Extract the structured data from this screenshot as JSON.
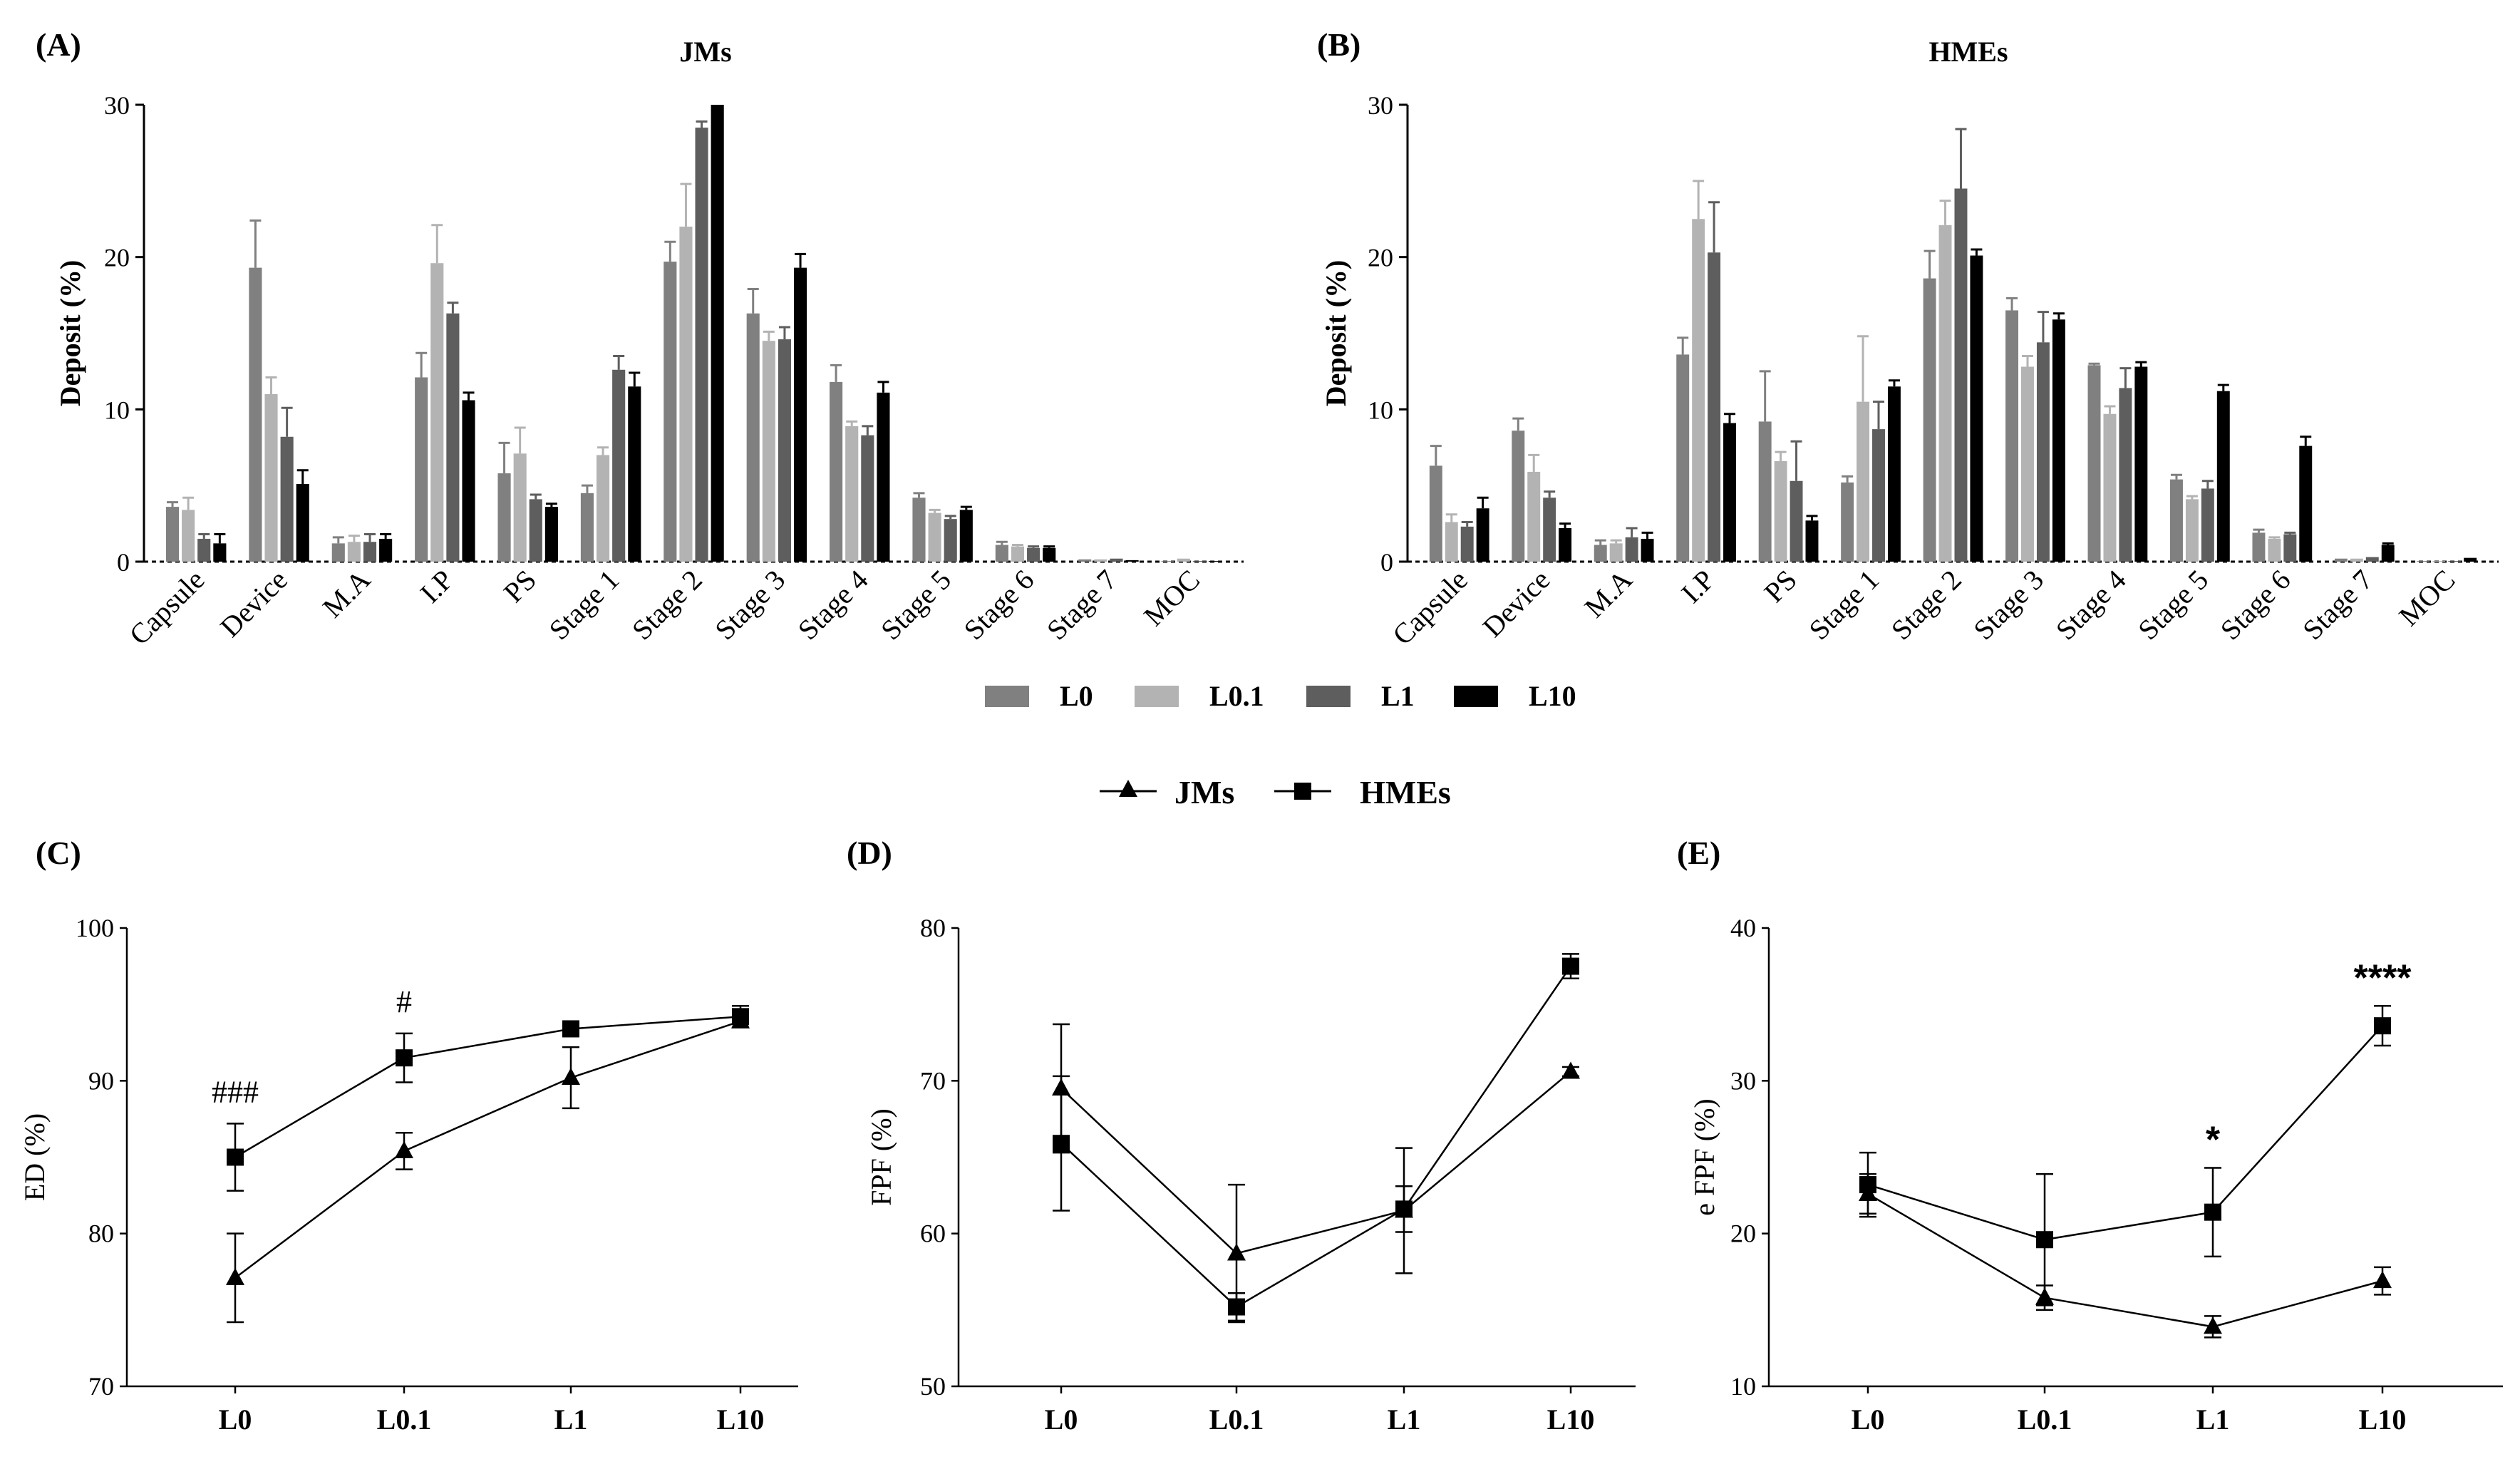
{
  "chart_data": [
    {
      "panel": "(A)",
      "type": "bar",
      "title": "JMs",
      "ylabel": "Deposit (%)",
      "ylim": [
        0,
        30
      ],
      "yticks": [
        "0",
        "10",
        "20",
        "30"
      ],
      "categories": [
        "Capsule",
        "Device",
        "M.A",
        "I.P",
        "PS",
        "Stage 1",
        "Stage 2",
        "Stage 3",
        "Stage 4",
        "Stage 5",
        "Stage 6",
        "Stage 7",
        "MOC"
      ],
      "series": [
        {
          "name": "L0",
          "color": "#808080",
          "values": [
            3.6,
            19.3,
            1.2,
            12.1,
            5.8,
            4.5,
            19.7,
            16.3,
            11.8,
            4.2,
            1.1,
            0.15,
            0.05
          ],
          "errors": [
            0.3,
            3.1,
            0.4,
            1.6,
            2.0,
            0.5,
            1.3,
            1.6,
            1.1,
            0.3,
            0.2,
            0.05,
            0.03
          ]
        },
        {
          "name": "L0.1",
          "color": "#b3b3b3",
          "values": [
            3.4,
            11.0,
            1.3,
            19.6,
            7.1,
            7.0,
            22.0,
            14.5,
            8.9,
            3.2,
            1.0,
            0.15,
            0.2
          ],
          "errors": [
            0.8,
            1.1,
            0.4,
            2.5,
            1.7,
            0.5,
            2.8,
            0.6,
            0.3,
            0.2,
            0.1,
            0.05,
            0.05
          ]
        },
        {
          "name": "L1",
          "color": "#5e5e5e",
          "values": [
            1.5,
            8.2,
            1.3,
            16.3,
            4.1,
            12.6,
            28.5,
            14.6,
            8.3,
            2.8,
            0.9,
            0.2,
            0.05
          ],
          "errors": [
            0.3,
            1.9,
            0.5,
            0.7,
            0.3,
            0.9,
            0.4,
            0.8,
            0.6,
            0.2,
            0.1,
            0.05,
            0.02
          ]
        },
        {
          "name": "L10",
          "color": "#000000",
          "values": [
            1.2,
            5.1,
            1.5,
            10.6,
            3.6,
            11.5,
            30.0,
            19.3,
            11.1,
            3.4,
            0.9,
            0.1,
            0.05
          ],
          "errors": [
            0.6,
            0.9,
            0.3,
            0.5,
            0.2,
            0.9,
            0.0,
            0.9,
            0.7,
            0.2,
            0.1,
            0.03,
            0.02
          ]
        }
      ]
    },
    {
      "panel": "(B)",
      "type": "bar",
      "title": "HMEs",
      "ylabel": "Deposit (%)",
      "ylim": [
        0,
        30
      ],
      "yticks": [
        "0",
        "10",
        "20",
        "30"
      ],
      "categories": [
        "Capsule",
        "Device",
        "M.A",
        "I.P",
        "PS",
        "Stage 1",
        "Stage 2",
        "Stage 3",
        "Stage 4",
        "Stage 5",
        "Stage 6",
        "Stage 7",
        "MOC"
      ],
      "series": [
        {
          "name": "L0",
          "color": "#808080",
          "values": [
            6.3,
            8.6,
            1.1,
            13.6,
            9.2,
            5.2,
            18.6,
            16.5,
            12.9,
            5.4,
            1.9,
            0.2,
            0.05
          ],
          "errors": [
            1.3,
            0.8,
            0.3,
            1.1,
            3.3,
            0.4,
            1.8,
            0.8,
            0.1,
            0.3,
            0.2,
            0.05,
            0.02
          ]
        },
        {
          "name": "L0.1",
          "color": "#b3b3b3",
          "values": [
            2.6,
            5.9,
            1.2,
            22.5,
            6.6,
            10.5,
            22.1,
            12.8,
            9.7,
            4.1,
            1.5,
            0.2,
            0.05
          ],
          "errors": [
            0.5,
            1.1,
            0.2,
            2.5,
            0.6,
            4.3,
            1.6,
            0.7,
            0.5,
            0.2,
            0.1,
            0.05,
            0.02
          ]
        },
        {
          "name": "L1",
          "color": "#5e5e5e",
          "values": [
            2.3,
            4.2,
            1.6,
            20.3,
            5.3,
            8.7,
            24.5,
            14.4,
            11.4,
            4.8,
            1.8,
            0.3,
            0.05
          ],
          "errors": [
            0.3,
            0.4,
            0.6,
            3.3,
            2.6,
            1.8,
            3.9,
            2.0,
            1.3,
            0.5,
            0.1,
            0.05,
            0.02
          ]
        },
        {
          "name": "L10",
          "color": "#000000",
          "values": [
            3.5,
            2.2,
            1.5,
            9.1,
            2.7,
            11.5,
            20.1,
            15.9,
            12.8,
            11.2,
            7.6,
            1.1,
            0.25
          ],
          "errors": [
            0.7,
            0.3,
            0.4,
            0.6,
            0.3,
            0.4,
            0.4,
            0.4,
            0.3,
            0.4,
            0.6,
            0.1,
            0.05
          ]
        }
      ]
    },
    {
      "panel": "(C)",
      "type": "line",
      "ylabel": "ED (%)",
      "ylim": [
        70,
        100
      ],
      "yticks": [
        "70",
        "80",
        "90",
        "100"
      ],
      "categories": [
        "L0",
        "L0.1",
        "L1",
        "L10"
      ],
      "series": [
        {
          "name": "JMs",
          "marker": "triangle",
          "values": [
            77.1,
            85.4,
            90.2,
            93.9
          ],
          "errors": [
            2.9,
            1.2,
            2.0,
            0.4
          ]
        },
        {
          "name": "HMEs",
          "marker": "square",
          "values": [
            85.0,
            91.5,
            93.4,
            94.2
          ],
          "errors": [
            2.2,
            1.6,
            0.3,
            0.7
          ]
        }
      ],
      "annotations": [
        {
          "text": "###",
          "category": "L0"
        },
        {
          "text": "#",
          "category": "L0.1"
        }
      ]
    },
    {
      "panel": "(D)",
      "type": "line",
      "ylabel": "FPF (%)",
      "ylim": [
        50,
        80
      ],
      "yticks": [
        "50",
        "60",
        "70",
        "80"
      ],
      "categories": [
        "L0",
        "L0.1",
        "L1",
        "L10"
      ],
      "series": [
        {
          "name": "JMs",
          "marker": "triangle",
          "values": [
            69.5,
            58.7,
            61.5,
            70.6
          ],
          "errors": [
            4.2,
            4.5,
            4.1,
            0.3
          ]
        },
        {
          "name": "HMEs",
          "marker": "square",
          "values": [
            65.9,
            55.2,
            61.6,
            77.5
          ],
          "errors": [
            4.4,
            0.9,
            1.5,
            0.8
          ]
        }
      ],
      "annotations": []
    },
    {
      "panel": "(E)",
      "type": "line",
      "ylabel": "e FPF (%)",
      "ylim": [
        10,
        40
      ],
      "yticks": [
        "10",
        "20",
        "30",
        "40"
      ],
      "categories": [
        "L0",
        "L0.1",
        "L1",
        "L10"
      ],
      "series": [
        {
          "name": "JMs",
          "marker": "triangle",
          "values": [
            22.6,
            15.8,
            13.9,
            16.9
          ],
          "errors": [
            1.3,
            0.8,
            0.7,
            0.9
          ]
        },
        {
          "name": "HMEs",
          "marker": "square",
          "values": [
            23.2,
            19.6,
            21.4,
            33.6
          ],
          "errors": [
            2.1,
            4.3,
            2.9,
            1.3
          ]
        }
      ],
      "annotations": [
        {
          "text": "*",
          "category": "L1"
        },
        {
          "text": "****",
          "category": "L10"
        }
      ]
    }
  ],
  "legend_bars": [
    "L0",
    "L0.1",
    "L1",
    "L10"
  ],
  "legend_lines": [
    "JMs",
    "HMEs"
  ]
}
